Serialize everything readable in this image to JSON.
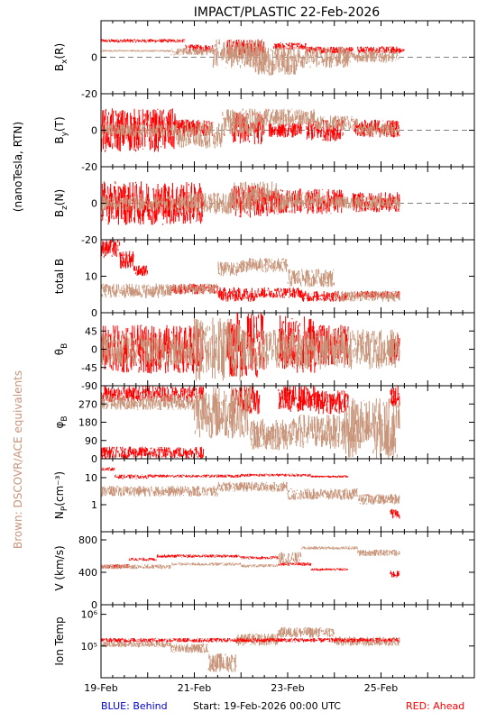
{
  "title": "IMPACT/PLASTIC   22-Feb-2026",
  "units_label": "(nanoTesla, RTN)",
  "brown_note": "Brown: DSCOVR/ACE equivalents",
  "footer": {
    "behind": "BLUE: Behind",
    "start": "Start: 19-Feb-2026 00:00 UTC",
    "ahead": "RED: Ahead"
  },
  "colors": {
    "ahead": "#ff0000",
    "dscovr": "#c8957a",
    "behind": "#0000cc",
    "zero_line": "#808080"
  },
  "chart_data": [
    {
      "type": "scatter",
      "id": "bx",
      "ylabel_main": "B",
      "ylabel_sub": "x",
      "ylabel_tail": "(R)",
      "ylim": [
        -20,
        20
      ],
      "yticks": [
        {
          "v": 0,
          "l": "0"
        },
        {
          "v": -20,
          "l": "-20"
        }
      ],
      "zero_line": true,
      "xticks": [
        "19-Feb",
        "21-Feb",
        "23-Feb",
        "25-Feb"
      ],
      "xlim_days": [
        0,
        8
      ],
      "series": [
        {
          "color": "ahead",
          "segments": [
            [
              0.0,
              1.8,
              8,
              10
            ],
            [
              1.8,
              2.4,
              3,
              7
            ],
            [
              2.7,
              3.5,
              0,
              10
            ],
            [
              3.7,
              4.4,
              4,
              8
            ],
            [
              4.4,
              5.4,
              2,
              6
            ],
            [
              5.5,
              6.4,
              2,
              6
            ],
            [
              6.2,
              6.5,
              2,
              5
            ]
          ]
        },
        {
          "color": "dscovr",
          "segments": [
            [
              0.0,
              1.5,
              3,
              4
            ],
            [
              1.5,
              2.5,
              1,
              5
            ],
            [
              2.4,
              3.5,
              -6,
              10
            ],
            [
              3.3,
              4.2,
              -10,
              6
            ],
            [
              4.2,
              5.3,
              -6,
              6
            ],
            [
              5.2,
              6.3,
              -3,
              4
            ],
            [
              6.3,
              6.4,
              -2,
              3
            ]
          ]
        }
      ]
    },
    {
      "type": "scatter",
      "id": "by",
      "ylabel_main": "B",
      "ylabel_sub": "y",
      "ylabel_tail": "(T)",
      "ylim": [
        -20,
        20
      ],
      "yticks": [
        {
          "v": 0,
          "l": "0"
        },
        {
          "v": -20,
          "l": "-20"
        }
      ],
      "zero_line": true,
      "xticks": [
        "19-Feb",
        "21-Feb",
        "23-Feb",
        "25-Feb"
      ],
      "xlim_days": [
        0,
        8
      ],
      "series": [
        {
          "color": "ahead",
          "segments": [
            [
              0.0,
              1.6,
              -12,
              12
            ],
            [
              1.6,
              2.4,
              -4,
              6
            ],
            [
              2.8,
              3.5,
              -8,
              10
            ],
            [
              3.6,
              4.3,
              -4,
              4
            ],
            [
              4.4,
              5.2,
              -6,
              6
            ],
            [
              5.4,
              6.4,
              -4,
              6
            ]
          ]
        },
        {
          "color": "dscovr",
          "segments": [
            [
              0.0,
              1.6,
              -4,
              4
            ],
            [
              1.6,
              2.6,
              -10,
              4
            ],
            [
              2.6,
              3.5,
              -4,
              12
            ],
            [
              3.5,
              4.6,
              2,
              12
            ],
            [
              4.6,
              5.5,
              0,
              8
            ],
            [
              5.5,
              6.4,
              -3,
              4
            ]
          ]
        }
      ]
    },
    {
      "type": "scatter",
      "id": "bz",
      "ylabel_main": "B",
      "ylabel_sub": "z",
      "ylabel_tail": "(N)",
      "ylim": [
        -20,
        20
      ],
      "yticks": [
        {
          "v": 0,
          "l": "0"
        },
        {
          "v": -20,
          "l": "-20"
        }
      ],
      "zero_line": true,
      "xticks": [
        "19-Feb",
        "21-Feb",
        "23-Feb",
        "25-Feb"
      ],
      "xlim_days": [
        0,
        8
      ],
      "series": [
        {
          "color": "ahead",
          "segments": [
            [
              0.0,
              2.2,
              -12,
              12
            ],
            [
              2.8,
              3.6,
              -8,
              10
            ],
            [
              3.6,
              4.3,
              -6,
              8
            ],
            [
              4.4,
              5.2,
              -6,
              8
            ],
            [
              5.4,
              6.4,
              -5,
              6
            ]
          ]
        },
        {
          "color": "dscovr",
          "segments": [
            [
              0.0,
              1.8,
              -4,
              4
            ],
            [
              1.8,
              2.8,
              -6,
              6
            ],
            [
              2.8,
              3.8,
              -5,
              12
            ],
            [
              3.8,
              4.8,
              -4,
              6
            ],
            [
              4.8,
              6.4,
              -3,
              4
            ]
          ]
        }
      ]
    },
    {
      "type": "scatter",
      "id": "btot",
      "ylabel_text": "total B",
      "ylim": [
        0,
        20
      ],
      "yticks": [
        {
          "v": 0,
          "l": "0"
        },
        {
          "v": 10,
          "l": "10"
        }
      ],
      "zero_line": false,
      "xticks": [
        "19-Feb",
        "21-Feb",
        "23-Feb",
        "25-Feb"
      ],
      "xlim_days": [
        0,
        8
      ],
      "series": [
        {
          "color": "ahead",
          "segments": [
            [
              0.0,
              0.4,
              15,
              20
            ],
            [
              0.4,
              0.7,
              12,
              17
            ],
            [
              0.7,
              1.0,
              10,
              13
            ],
            [
              1.5,
              2.5,
              5,
              8
            ],
            [
              2.5,
              3.3,
              3,
              7
            ],
            [
              3.3,
              4.3,
              4,
              7
            ],
            [
              4.3,
              5.3,
              3,
              6
            ],
            [
              5.4,
              6.4,
              4,
              6
            ]
          ]
        },
        {
          "color": "dscovr",
          "segments": [
            [
              0.0,
              1.5,
              4,
              8
            ],
            [
              1.5,
              2.5,
              5,
              8
            ],
            [
              2.5,
              3.0,
              10,
              14
            ],
            [
              3.0,
              4.0,
              11,
              15
            ],
            [
              4.0,
              5.0,
              7,
              12
            ],
            [
              5.0,
              6.4,
              3,
              6
            ]
          ]
        }
      ]
    },
    {
      "type": "scatter",
      "id": "theta",
      "ylabel_main": "θ",
      "ylabel_sub": "B",
      "ylabel_tail": "",
      "ylim": [
        -90,
        90
      ],
      "yticks": [
        {
          "v": 45,
          "l": "45"
        },
        {
          "v": 0,
          "l": "0"
        },
        {
          "v": -45,
          "l": "-45"
        },
        {
          "v": -90,
          "l": "-90"
        }
      ],
      "zero_line": false,
      "xticks": [
        "19-Feb",
        "21-Feb",
        "23-Feb",
        "25-Feb"
      ],
      "xlim_days": [
        0,
        8
      ],
      "series": [
        {
          "color": "ahead",
          "segments": [
            [
              0.0,
              2.2,
              -60,
              60
            ],
            [
              2.7,
              3.5,
              -70,
              90
            ],
            [
              3.8,
              4.6,
              -60,
              85
            ],
            [
              4.6,
              5.3,
              -40,
              60
            ],
            [
              6.2,
              6.4,
              -40,
              40
            ]
          ]
        },
        {
          "color": "dscovr",
          "segments": [
            [
              0.0,
              2.0,
              -40,
              40
            ],
            [
              2.0,
              3.0,
              -80,
              80
            ],
            [
              3.0,
              4.0,
              -50,
              50
            ],
            [
              4.0,
              6.4,
              -50,
              50
            ]
          ]
        }
      ]
    },
    {
      "type": "scatter",
      "id": "phi",
      "ylabel_main": "φ",
      "ylabel_sub": "B",
      "ylabel_tail": "",
      "ylim": [
        0,
        360
      ],
      "yticks": [
        {
          "v": 270,
          "l": "270"
        },
        {
          "v": 180,
          "l": "180"
        },
        {
          "v": 90,
          "l": "90"
        },
        {
          "v": 0,
          "l": "0"
        }
      ],
      "zero_line": false,
      "xticks": [
        "19-Feb",
        "21-Feb",
        "23-Feb",
        "25-Feb"
      ],
      "xlim_days": [
        0,
        8
      ],
      "series": [
        {
          "color": "ahead",
          "segments": [
            [
              0.0,
              2.2,
              280,
              360
            ],
            [
              0.0,
              2.2,
              0,
              60
            ],
            [
              2.8,
              3.4,
              220,
              360
            ],
            [
              3.8,
              4.6,
              230,
              360
            ],
            [
              4.6,
              5.3,
              220,
              340
            ],
            [
              6.2,
              6.4,
              250,
              360
            ]
          ]
        },
        {
          "color": "dscovr",
          "segments": [
            [
              0.0,
              2.0,
              240,
              320
            ],
            [
              2.0,
              3.2,
              100,
              360
            ],
            [
              3.2,
              4.2,
              40,
              200
            ],
            [
              4.2,
              5.2,
              50,
              220
            ],
            [
              5.2,
              6.4,
              0,
              300
            ]
          ]
        }
      ]
    },
    {
      "type": "scatter",
      "id": "np",
      "ylabel_main": "N",
      "ylabel_sub": "P",
      "ylabel_tail": "(cm⁻³)",
      "ylog": true,
      "ylim": [
        0.1,
        50
      ],
      "yticks": [
        {
          "v": 10,
          "l": "10"
        },
        {
          "v": 1,
          "l": "1"
        }
      ],
      "zero_line": false,
      "xticks": [
        "19-Feb",
        "21-Feb",
        "23-Feb",
        "25-Feb"
      ],
      "xlim_days": [
        0,
        8
      ],
      "series": [
        {
          "color": "ahead",
          "segments": [
            [
              0.0,
              0.3,
              18,
              24
            ],
            [
              0.3,
              1.0,
              9,
              13
            ],
            [
              1.0,
              3.0,
              10,
              13
            ],
            [
              3.0,
              4.5,
              11,
              14
            ],
            [
              4.5,
              5.3,
              10,
              12
            ],
            [
              6.2,
              6.4,
              0.3,
              0.7
            ]
          ]
        },
        {
          "color": "dscovr",
          "segments": [
            [
              0.0,
              1.5,
              2,
              5
            ],
            [
              1.5,
              2.5,
              2,
              5
            ],
            [
              2.5,
              4.0,
              3,
              7
            ],
            [
              4.0,
              5.5,
              1.5,
              4
            ],
            [
              5.5,
              6.4,
              1,
              2.5
            ]
          ]
        }
      ]
    },
    {
      "type": "scatter",
      "id": "v",
      "ylabel_text": "V (km/s)",
      "ylim": [
        0,
        900
      ],
      "yticks": [
        {
          "v": 800,
          "l": "800"
        },
        {
          "v": 400,
          "l": "400"
        },
        {
          "v": 0,
          "l": "0"
        }
      ],
      "zero_line": false,
      "xticks": [
        "19-Feb",
        "21-Feb",
        "23-Feb",
        "25-Feb"
      ],
      "xlim_days": [
        0,
        8
      ],
      "series": [
        {
          "color": "ahead",
          "segments": [
            [
              0.0,
              0.6,
              450,
              500
            ],
            [
              0.6,
              1.2,
              540,
              580
            ],
            [
              1.2,
              3.0,
              580,
              620
            ],
            [
              3.0,
              3.8,
              560,
              600
            ],
            [
              3.8,
              4.5,
              480,
              520
            ],
            [
              4.5,
              5.3,
              420,
              450
            ],
            [
              6.2,
              6.4,
              330,
              420
            ]
          ]
        },
        {
          "color": "dscovr",
          "segments": [
            [
              0.0,
              1.5,
              440,
              500
            ],
            [
              1.5,
              3.0,
              480,
              520
            ],
            [
              3.0,
              3.8,
              460,
              500
            ],
            [
              3.8,
              4.3,
              500,
              650
            ],
            [
              4.3,
              5.5,
              680,
              720
            ],
            [
              5.5,
              6.4,
              600,
              680
            ]
          ]
        }
      ]
    },
    {
      "type": "scatter",
      "id": "temp",
      "ylabel_text": "Ion Temp",
      "ylog": true,
      "ylim": [
        10000,
        2000000
      ],
      "yticks": [
        {
          "v": 1000000,
          "l": "10⁶"
        },
        {
          "v": 100000,
          "l": "10⁵"
        }
      ],
      "zero_line": false,
      "xticks": [
        "19-Feb",
        "21-Feb",
        "23-Feb",
        "25-Feb"
      ],
      "xlim_days": [
        0,
        8
      ],
      "series": [
        {
          "color": "dscovr",
          "segments": [
            [
              0.0,
              1.5,
              90000,
              140000
            ],
            [
              1.5,
              2.3,
              60000,
              120000
            ],
            [
              2.3,
              2.9,
              15000,
              60000
            ],
            [
              2.9,
              3.8,
              100000,
              250000
            ],
            [
              3.8,
              5.0,
              180000,
              400000
            ],
            [
              5.0,
              6.4,
              100000,
              200000
            ]
          ]
        },
        {
          "color": "ahead",
          "segments": [
            [
              0.0,
              6.4,
              130000,
              180000
            ]
          ]
        }
      ]
    }
  ]
}
